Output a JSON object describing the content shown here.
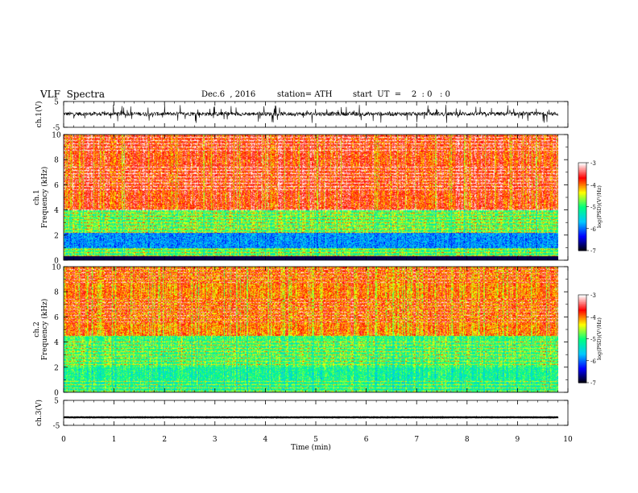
{
  "header": {
    "title": "VLF  Spectra",
    "date": "Dec.6  , 2016",
    "station": "station= ATH",
    "start": "start  UT  =    2  : 0   : 0"
  },
  "colors": {
    "spectrogram_scale": [
      "#000000",
      "#0000ff",
      "#00c8ff",
      "#00ff80",
      "#ffff00",
      "#ff0000",
      "#ffffff"
    ],
    "trace": "#000000"
  },
  "chart_data": [
    {
      "type": "line",
      "name": "ch1-waveform",
      "ylabel": "ch.1(V)",
      "yticks": [
        "5",
        "-5"
      ],
      "ylim": [
        -5,
        5
      ],
      "xlim": [
        0,
        10
      ],
      "mean_level": 0.2,
      "noise_amplitude": 1.5
    },
    {
      "type": "heatmap",
      "name": "ch1-spectrogram",
      "ylabel": "ch.1\nFrequency (kHz)",
      "ylabel_lines": [
        "ch.1",
        "Frequency  (kHz)"
      ],
      "yticks": [
        "10",
        "8",
        "6",
        "4",
        "2",
        "0"
      ],
      "ylim": [
        0,
        10
      ],
      "xlim": [
        0,
        9.8
      ],
      "colorbar": {
        "label": "log(PSD)(V²/Hz)",
        "ticks": [
          "-3",
          "-4",
          "-5",
          "-6",
          "-7"
        ],
        "range": [
          -7,
          -3
        ]
      }
    },
    {
      "type": "heatmap",
      "name": "ch2-spectrogram",
      "ylabel": "ch.2\nFrequency (kHz)",
      "ylabel_lines": [
        "ch.2",
        "Frequency  (kHz)"
      ],
      "yticks": [
        "10",
        "8",
        "6",
        "4",
        "2",
        "0"
      ],
      "ylim": [
        0,
        10
      ],
      "xlim": [
        0,
        9.8
      ],
      "colorbar": {
        "label": "log(PSD)(V²/Hz)",
        "ticks": [
          "-3",
          "-4",
          "-5",
          "-6",
          "-7"
        ],
        "range": [
          -7,
          -3
        ]
      }
    },
    {
      "type": "line",
      "name": "ch3-waveform",
      "ylabel": "ch.3(V)",
      "yticks": [
        "5",
        "-5"
      ],
      "ylim": [
        -5,
        5
      ],
      "xlim": [
        0,
        10
      ],
      "mean_level": -1.8,
      "noise_amplitude": 0.15
    }
  ],
  "xaxis": {
    "label": "Time  (min)",
    "ticks": [
      "0",
      "1",
      "2",
      "3",
      "4",
      "5",
      "6",
      "7",
      "8",
      "9",
      "10"
    ],
    "range": [
      0,
      10
    ]
  },
  "colorbar_label": "log(PSD)(V²/Hz)"
}
